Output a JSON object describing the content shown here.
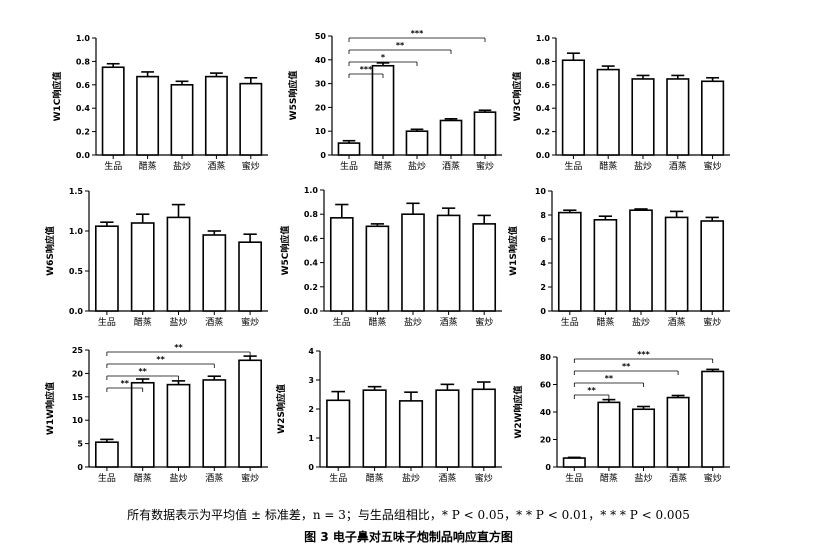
{
  "figure": {
    "note": "所有数据表示为平均值 ± 标准差，n = 3；与生品组相比，* P < 0.05，* * P < 0.01，* * * P < 0.005",
    "caption": "图 3   电子鼻对五味子炮制品响应直方图"
  },
  "chart_data": [
    {
      "type": "bar",
      "categories": [
        "生品",
        "醋蒸",
        "盐炒",
        "酒蒸",
        "蜜炒"
      ],
      "values": [
        0.75,
        0.67,
        0.6,
        0.67,
        0.61
      ],
      "errors": [
        0.03,
        0.04,
        0.03,
        0.03,
        0.05
      ],
      "ylabel": "W1C响应值",
      "ylim": [
        0,
        1.0
      ],
      "yticks": [
        "0.0",
        "0.2",
        "0.4",
        "0.6",
        "0.8",
        "1.0"
      ],
      "ytick_values": [
        0,
        0.2,
        0.4,
        0.6,
        0.8,
        1.0
      ],
      "sig": []
    },
    {
      "type": "bar",
      "categories": [
        "生品",
        "醋蒸",
        "盐炒",
        "酒蒸",
        "蜜炒"
      ],
      "values": [
        5.0,
        37.5,
        10.0,
        14.5,
        18.0
      ],
      "errors": [
        1.0,
        1.2,
        0.8,
        0.7,
        0.8
      ],
      "ylabel": "W5S响应值",
      "ylim": [
        0,
        50
      ],
      "yticks": [
        "0",
        "10",
        "20",
        "30",
        "40",
        "50"
      ],
      "ytick_values": [
        0,
        10,
        20,
        30,
        40,
        50
      ],
      "sig": [
        {
          "to": 1,
          "label": "***"
        },
        {
          "to": 2,
          "label": "*"
        },
        {
          "to": 3,
          "label": "**"
        },
        {
          "to": 4,
          "label": "***"
        }
      ]
    },
    {
      "type": "bar",
      "categories": [
        "生品",
        "醋蒸",
        "盐炒",
        "酒蒸",
        "蜜炒"
      ],
      "values": [
        0.81,
        0.73,
        0.65,
        0.65,
        0.63
      ],
      "errors": [
        0.06,
        0.03,
        0.03,
        0.03,
        0.03
      ],
      "ylabel": "W3C响应值",
      "ylim": [
        0,
        1.0
      ],
      "yticks": [
        "0.0",
        "0.2",
        "0.4",
        "0.6",
        "0.8",
        "1.0"
      ],
      "ytick_values": [
        0,
        0.2,
        0.4,
        0.6,
        0.8,
        1.0
      ],
      "sig": []
    },
    {
      "type": "bar",
      "categories": [
        "生品",
        "醋蒸",
        "盐炒",
        "酒蒸",
        "蜜炒"
      ],
      "values": [
        1.06,
        1.1,
        1.17,
        0.95,
        0.86
      ],
      "errors": [
        0.05,
        0.11,
        0.16,
        0.05,
        0.1
      ],
      "ylabel": "W6S响应值",
      "ylim": [
        0,
        1.5
      ],
      "yticks": [
        "0.0",
        "0.5",
        "1.0",
        "1.5"
      ],
      "ytick_values": [
        0,
        0.5,
        1.0,
        1.5
      ],
      "sig": []
    },
    {
      "type": "bar",
      "categories": [
        "生品",
        "醋蒸",
        "盐炒",
        "酒蒸",
        "蜜炒"
      ],
      "values": [
        0.77,
        0.7,
        0.8,
        0.79,
        0.72
      ],
      "errors": [
        0.11,
        0.02,
        0.09,
        0.06,
        0.07
      ],
      "ylabel": "W5C响应值",
      "ylim": [
        0,
        1.0
      ],
      "yticks": [
        "0.0",
        "0.2",
        "0.4",
        "0.6",
        "0.8",
        "1.0"
      ],
      "ytick_values": [
        0,
        0.2,
        0.4,
        0.6,
        0.8,
        1.0
      ],
      "sig": []
    },
    {
      "type": "bar",
      "categories": [
        "生品",
        "醋蒸",
        "盐炒",
        "酒蒸",
        "蜜炒"
      ],
      "values": [
        8.2,
        7.6,
        8.4,
        7.8,
        7.5
      ],
      "errors": [
        0.2,
        0.3,
        0.1,
        0.5,
        0.3
      ],
      "ylabel": "W1S响应值",
      "ylim": [
        0,
        10
      ],
      "yticks": [
        "0",
        "2",
        "4",
        "6",
        "8",
        "10"
      ],
      "ytick_values": [
        0,
        2,
        4,
        6,
        8,
        10
      ],
      "sig": []
    },
    {
      "type": "bar",
      "categories": [
        "生品",
        "醋蒸",
        "盐炒",
        "酒蒸",
        "蜜炒"
      ],
      "values": [
        5.3,
        18.0,
        17.6,
        18.6,
        22.8
      ],
      "errors": [
        0.6,
        0.8,
        0.8,
        0.8,
        0.9
      ],
      "ylabel": "W1W响应值",
      "ylim": [
        0,
        25
      ],
      "yticks": [
        "0",
        "5",
        "10",
        "15",
        "20",
        "25"
      ],
      "ytick_values": [
        0,
        5,
        10,
        15,
        20,
        25
      ],
      "sig": [
        {
          "to": 1,
          "label": "**"
        },
        {
          "to": 2,
          "label": "**"
        },
        {
          "to": 3,
          "label": "**"
        },
        {
          "to": 4,
          "label": "**"
        }
      ]
    },
    {
      "type": "bar",
      "categories": [
        "生品",
        "醋蒸",
        "盐炒",
        "酒蒸",
        "蜜炒"
      ],
      "values": [
        2.3,
        2.65,
        2.28,
        2.65,
        2.68
      ],
      "errors": [
        0.3,
        0.12,
        0.3,
        0.2,
        0.25
      ],
      "ylabel": "W2S响应值",
      "ylim": [
        0,
        4
      ],
      "yticks": [
        "0",
        "1",
        "2",
        "3",
        "4"
      ],
      "ytick_values": [
        0,
        1,
        2,
        3,
        4
      ],
      "sig": []
    },
    {
      "type": "bar",
      "categories": [
        "生品",
        "醋蒸",
        "盐炒",
        "酒蒸",
        "蜜炒"
      ],
      "values": [
        6.5,
        47.0,
        42.0,
        50.5,
        69.5
      ],
      "errors": [
        0.5,
        2.0,
        2.0,
        1.5,
        1.5
      ],
      "ylabel": "W2W响应值",
      "ylim": [
        0,
        80
      ],
      "yticks": [
        "0",
        "20",
        "40",
        "60",
        "80"
      ],
      "ytick_values": [
        0,
        20,
        40,
        60,
        80
      ],
      "sig": [
        {
          "to": 1,
          "label": "**"
        },
        {
          "to": 2,
          "label": "**"
        },
        {
          "to": 3,
          "label": "**"
        },
        {
          "to": 4,
          "label": "***"
        }
      ]
    }
  ]
}
